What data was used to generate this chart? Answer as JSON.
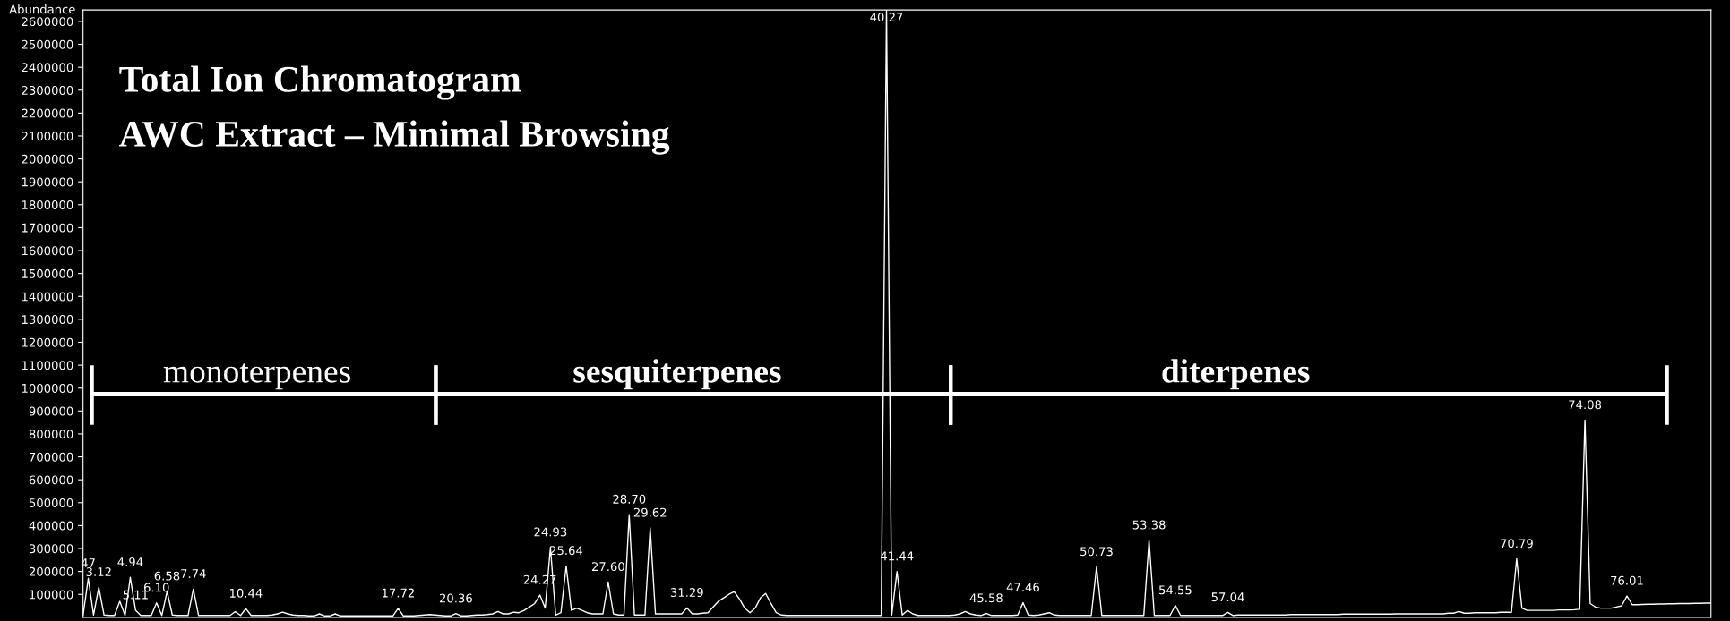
{
  "chart_data": {
    "type": "line",
    "title": "Total Ion Chromatogram",
    "subtitle": "AWC Extract – Minimal Browsing",
    "ylabel": "Abundance",
    "categories": [
      null,
      null,
      null,
      null,
      null,
      null,
      null,
      null,
      null,
      null,
      null,
      null,
      null,
      null,
      null,
      null,
      null,
      null,
      null,
      null,
      null,
      null,
      null,
      null,
      null,
      null,
      null,
      null,
      null,
      null,
      null,
      null,
      null,
      null,
      null,
      null,
      null,
      null,
      null,
      null,
      null,
      null,
      null,
      null,
      null,
      null,
      null,
      null,
      null,
      null,
      null,
      null,
      null,
      null,
      null,
      null,
      null,
      null,
      null,
      null,
      null,
      null,
      null,
      null,
      null,
      null,
      null,
      null,
      null,
      null,
      null,
      null,
      null,
      null,
      null,
      null,
      null,
      null,
      null,
      null,
      null,
      null,
      null,
      null,
      null,
      null,
      null,
      null,
      null,
      null,
      null,
      null,
      null,
      null,
      null,
      null,
      null,
      null,
      null,
      null,
      null,
      null,
      null,
      null,
      null,
      null,
      null,
      null,
      null,
      null,
      null,
      null,
      null,
      null,
      null,
      null,
      null,
      null,
      null,
      null,
      null,
      null,
      null,
      null,
      null,
      null,
      null,
      null,
      null,
      null,
      null,
      null,
      null,
      null,
      null,
      null,
      null,
      null,
      null,
      null,
      null,
      null,
      null,
      null,
      null,
      null,
      null,
      null,
      null,
      null,
      null,
      null,
      null,
      null,
      null,
      null,
      null,
      null,
      null,
      null,
      null,
      null,
      null,
      null,
      null,
      null,
      null,
      null,
      null,
      null,
      null,
      null,
      null,
      null,
      null,
      null,
      null,
      null,
      null,
      null,
      null,
      null,
      null,
      null,
      null,
      null,
      null,
      null,
      null,
      null,
      null,
      null,
      null,
      null,
      null,
      null,
      null,
      null,
      null,
      null,
      null,
      null,
      null,
      null,
      null,
      null,
      null,
      null,
      null,
      null,
      null,
      null,
      null,
      null,
      null,
      null,
      null,
      null,
      null,
      null,
      null,
      null,
      null,
      null,
      null,
      null,
      null,
      null,
      null,
      null,
      null,
      null,
      null,
      null,
      null,
      null,
      null,
      null,
      null,
      null,
      null,
      null,
      null,
      null,
      null,
      null,
      null,
      null,
      null,
      null,
      null,
      null,
      null,
      null,
      null,
      null,
      null,
      null,
      null,
      null,
      null,
      null,
      null,
      null,
      null,
      null,
      null,
      null,
      null,
      null,
      null,
      null,
      null,
      null,
      null,
      null,
      null,
      null,
      null,
      null,
      null,
      null,
      null,
      null,
      null,
      null,
      null,
      null,
      null,
      null,
      null,
      null,
      null,
      null,
      null,
      null,
      null,
      null,
      null,
      null,
      null,
      null,
      null,
      null,
      null,
      null,
      null,
      null,
      null,
      null,
      null
    ],
    "series": [
      {
        "color": "#ffffff",
        "values": [
          8000,
          170000,
          10000,
          131000,
          10000,
          8000,
          8000,
          70000,
          8000,
          174000,
          31000,
          8000,
          8000,
          8000,
          63000,
          8000,
          113000,
          10000,
          8000,
          8000,
          8000,
          123000,
          8000,
          8000,
          8000,
          8000,
          8000,
          8000,
          8000,
          25000,
          8000,
          38000,
          8000,
          8000,
          8000,
          8000,
          10000,
          15000,
          22000,
          15000,
          10000,
          8000,
          8000,
          6000,
          6000,
          15000,
          6000,
          6000,
          15000,
          6000,
          6000,
          6000,
          6000,
          6000,
          6000,
          6000,
          6000,
          6000,
          6000,
          6000,
          39000,
          6000,
          6000,
          6000,
          8000,
          10000,
          12000,
          10000,
          8000,
          6000,
          6000,
          16000,
          6000,
          6000,
          8000,
          10000,
          10000,
          12000,
          15000,
          25000,
          15000,
          15000,
          22000,
          20000,
          30000,
          45000,
          60000,
          97000,
          40000,
          305000,
          10000,
          20000,
          224000,
          30000,
          40000,
          30000,
          20000,
          15000,
          15000,
          15000,
          154000,
          15000,
          10000,
          10000,
          448000,
          10000,
          10000,
          10000,
          390000,
          15000,
          15000,
          15000,
          15000,
          15000,
          15000,
          41000,
          15000,
          15000,
          18000,
          20000,
          45000,
          70000,
          85000,
          100000,
          112000,
          80000,
          40000,
          20000,
          40000,
          85000,
          104000,
          60000,
          20000,
          10000,
          8000,
          8000,
          8000,
          8000,
          8000,
          8000,
          8000,
          8000,
          8000,
          8000,
          8000,
          8000,
          8000,
          8000,
          8000,
          8000,
          8000,
          8000,
          8000,
          2650000,
          10000,
          200000,
          10000,
          30000,
          15000,
          8000,
          8000,
          8000,
          8000,
          8000,
          8000,
          8000,
          10000,
          15000,
          25000,
          15000,
          10000,
          8000,
          17000,
          8000,
          8000,
          8000,
          8000,
          8000,
          10000,
          64000,
          10000,
          8000,
          10000,
          15000,
          20000,
          10000,
          8000,
          8000,
          8000,
          8000,
          8000,
          8000,
          8000,
          220000,
          8000,
          8000,
          8000,
          8000,
          8000,
          8000,
          8000,
          8000,
          8000,
          336000,
          8000,
          8000,
          8000,
          8000,
          52000,
          8000,
          8000,
          8000,
          8000,
          8000,
          8000,
          8000,
          8000,
          8000,
          21000,
          8000,
          10000,
          10000,
          10000,
          10000,
          10000,
          10000,
          10000,
          10000,
          10000,
          10000,
          12000,
          12000,
          12000,
          12000,
          12000,
          12000,
          12000,
          12000,
          12000,
          12000,
          14000,
          14000,
          14000,
          14000,
          14000,
          14000,
          14000,
          14000,
          14000,
          14000,
          15000,
          15000,
          15000,
          15000,
          15000,
          15000,
          15000,
          15000,
          15000,
          15000,
          18000,
          18000,
          25000,
          18000,
          18000,
          20000,
          20000,
          20000,
          20000,
          20000,
          22000,
          22000,
          22000,
          255000,
          40000,
          30000,
          30000,
          30000,
          30000,
          30000,
          30000,
          32000,
          32000,
          32000,
          33000,
          35000,
          860000,
          60000,
          45000,
          40000,
          40000,
          40000,
          45000,
          50000,
          93000,
          55000,
          55000,
          56000,
          57000,
          57000,
          58000,
          58000,
          59000,
          59000,
          60000,
          60000,
          60000,
          61000,
          61000,
          62000,
          62000
        ]
      }
    ],
    "ylim": [
      0,
      2650000
    ],
    "yticks": [
      100000,
      200000,
      300000,
      400000,
      500000,
      600000,
      700000,
      800000,
      900000,
      1000000,
      1100000,
      1200000,
      1300000,
      1400000,
      1500000,
      1600000,
      1700000,
      1800000,
      1900000,
      2000000,
      2100000,
      2200000,
      2300000,
      2400000,
      2500000,
      2600000
    ],
    "tick_labels": "y",
    "annotations": [
      "monoterpenes",
      "sesquiterpenes",
      "diterpenes",
      {
        "text": "47",
        "y": 170000
      },
      {
        "text": "3.12",
        "y": 131000
      },
      {
        "text": "4.94",
        "y": 174000
      },
      {
        "text": "5.11",
        "y": 31000
      },
      {
        "text": "6.10",
        "y": 63000
      },
      {
        "text": "6.58",
        "y": 113000
      },
      {
        "text": "7.74",
        "y": 123000
      },
      {
        "text": "10.44",
        "y": 38000
      },
      {
        "text": "17.72",
        "y": 39000
      },
      {
        "text": "20.36",
        "y": 16000
      },
      {
        "text": "24.27",
        "y": 97000
      },
      {
        "text": "24.93",
        "y": 305000
      },
      {
        "text": "25.64",
        "y": 224000
      },
      {
        "text": "27.60",
        "y": 154000
      },
      {
        "text": "28.70",
        "y": 448000
      },
      {
        "text": "29.62",
        "y": 390000
      },
      {
        "text": "31.29",
        "y": 41000
      },
      {
        "text": "40.27",
        "y": 2650000
      },
      {
        "text": "41.44",
        "y": 200000
      },
      {
        "text": "45.58",
        "y": 17000
      },
      {
        "text": "47.46",
        "y": 64000
      },
      {
        "text": "50.73",
        "y": 220000
      },
      {
        "text": "53.38",
        "y": 336000
      },
      {
        "text": "54.55",
        "y": 52000
      },
      {
        "text": "57.04",
        "y": 21000
      },
      {
        "text": "70.79",
        "y": 255000
      },
      {
        "text": "74.08",
        "y": 860000
      },
      {
        "text": "76.01",
        "y": 93000
      }
    ]
  }
}
